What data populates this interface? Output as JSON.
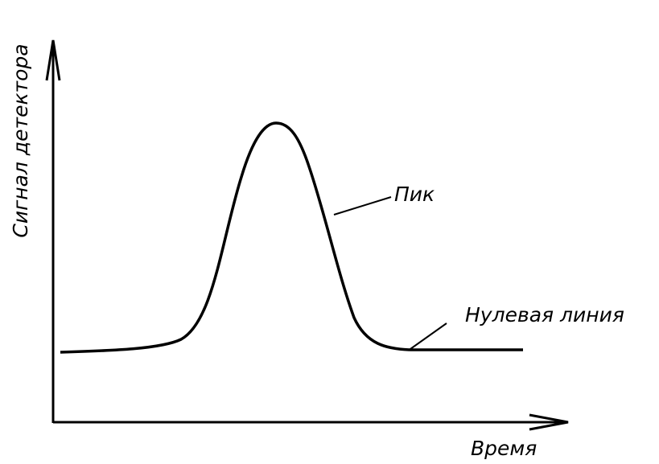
{
  "axes": {
    "y_label": "Сигнал детектора",
    "x_label": "Время"
  },
  "labels": {
    "peak": "Пик",
    "baseline": "Нулевая линия"
  }
}
